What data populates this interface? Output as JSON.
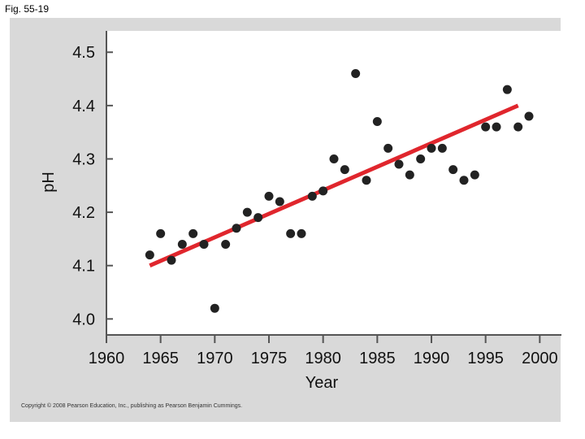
{
  "figure": {
    "label": "Fig. 55-19",
    "copyright": "Copyright © 2008 Pearson Education, Inc., publishing as Pearson Benjamin Cummings."
  },
  "colors": {
    "panel": "#d9d9d9",
    "plot_area": "#ffffff",
    "points": "#222222",
    "trend_line": "#e0262d"
  },
  "chart_data": {
    "type": "scatter",
    "title": "",
    "xlabel": "Year",
    "ylabel": "pH",
    "xlim": [
      1960,
      2002
    ],
    "ylim": [
      3.97,
      4.54
    ],
    "x_ticks": [
      1960,
      1965,
      1970,
      1975,
      1980,
      1985,
      1990,
      1995,
      2000
    ],
    "x_tick_labels": [
      "1960",
      "1965",
      "1970",
      "1975",
      "1980",
      "1985",
      "1990",
      "1995",
      "2000"
    ],
    "y_ticks": [
      4.0,
      4.1,
      4.2,
      4.3,
      4.4,
      4.5
    ],
    "y_tick_labels": [
      "4.0",
      "4.1",
      "4.2",
      "4.3",
      "4.4",
      "4.5"
    ],
    "grid": false,
    "legend": "none",
    "series": [
      {
        "x": [
          1964,
          1965,
          1966,
          1967,
          1968,
          1969,
          1970,
          1971,
          1972,
          1973,
          1974,
          1975,
          1976,
          1977,
          1978,
          1979,
          1980,
          1981,
          1982,
          1983,
          1984,
          1985,
          1986,
          1987,
          1988,
          1989,
          1990,
          1991,
          1992,
          1993,
          1994,
          1995,
          1996,
          1997,
          1998,
          1999
        ],
        "y": [
          4.12,
          4.16,
          4.11,
          4.14,
          4.16,
          4.14,
          4.02,
          4.14,
          4.17,
          4.2,
          4.19,
          4.23,
          4.22,
          4.16,
          4.16,
          4.23,
          4.24,
          4.3,
          4.28,
          4.46,
          4.26,
          4.37,
          4.32,
          4.29,
          4.27,
          4.3,
          4.32,
          4.32,
          4.28,
          4.26,
          4.27,
          4.36,
          4.36,
          4.43,
          4.36,
          4.38
        ]
      }
    ],
    "trend_line": {
      "x": [
        1964,
        1998
      ],
      "y": [
        4.1,
        4.4
      ]
    }
  }
}
